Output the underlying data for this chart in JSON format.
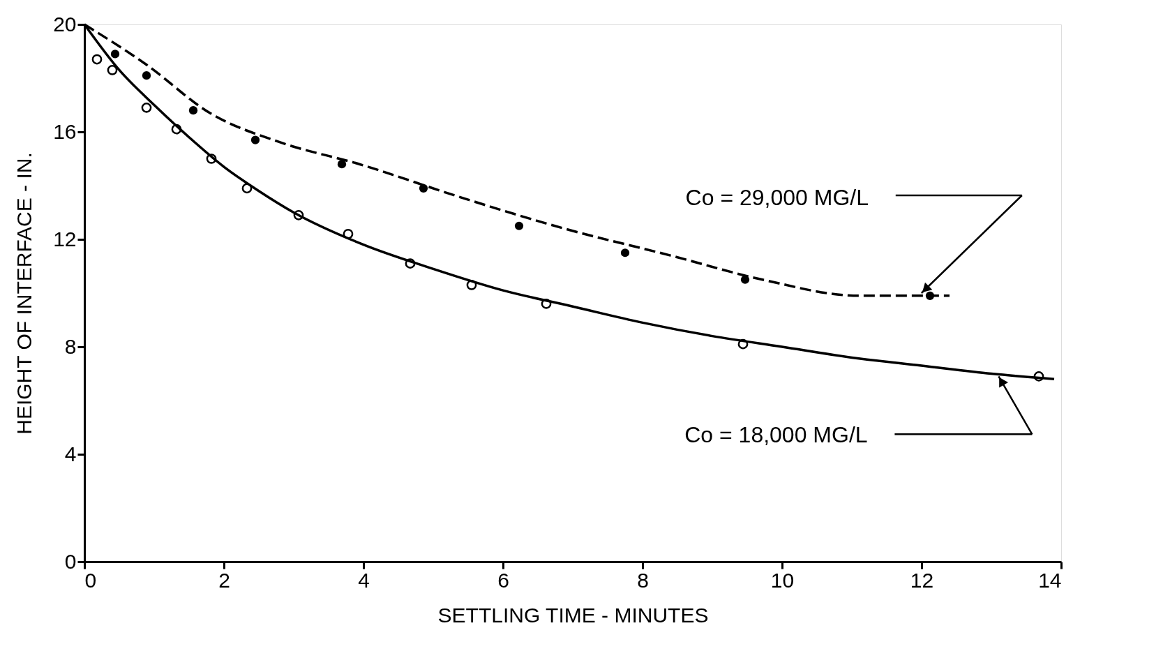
{
  "chart_data": {
    "type": "scatter",
    "xlabel": "SETTLING TIME - MINUTES",
    "ylabel": "HEIGHT OF INTERFACE - IN.",
    "xlim": [
      0,
      14
    ],
    "ylim": [
      0,
      20
    ],
    "xticks": [
      0,
      2,
      4,
      6,
      8,
      10,
      12,
      14
    ],
    "yticks": [
      0,
      4,
      8,
      12,
      16,
      20
    ],
    "grid": false,
    "series": [
      {
        "color": "#000000",
        "marker": "circle",
        "x": [
          0.44,
          0.89,
          1.56,
          2.45,
          3.69,
          4.86,
          6.23,
          7.75,
          9.47,
          12.12
        ],
        "values": [
          18.9,
          18.1,
          16.8,
          15.7,
          14.8,
          13.9,
          12.5,
          11.5,
          10.5,
          9.9
        ]
      },
      {
        "color": "#000000",
        "marker": "circle",
        "x": [
          0.18,
          0.4,
          0.89,
          1.32,
          1.82,
          2.33,
          3.07,
          3.78,
          4.67,
          5.55,
          6.62,
          9.44,
          13.68
        ],
        "values": [
          18.7,
          18.3,
          16.9,
          16.1,
          15.0,
          13.9,
          12.9,
          12.2,
          11.1,
          10.3,
          9.6,
          8.1,
          6.9
        ]
      },
      {
        "type": "line",
        "color": "#000000",
        "line_style": "dashed",
        "x": [
          0,
          0.89,
          1.8,
          2.82,
          3.94,
          5.35,
          6.88,
          8.4,
          9.72,
          11.1,
          12.4
        ],
        "values": [
          20,
          18.5,
          16.7,
          15.6,
          14.8,
          13.6,
          12.4,
          11.4,
          10.5,
          9.9,
          9.9
        ]
      },
      {
        "type": "line",
        "color": "#000000",
        "line_style": "solid",
        "x": [
          0,
          0.5,
          1,
          1.5,
          2,
          2.5,
          3,
          4,
          5,
          6,
          7,
          8,
          9,
          10,
          11,
          12,
          13,
          13.9
        ],
        "values": [
          20,
          18.3,
          17.0,
          15.8,
          14.7,
          13.8,
          13.0,
          11.8,
          10.9,
          10.1,
          9.5,
          8.9,
          8.4,
          8.0,
          7.6,
          7.3,
          7.0,
          6.8
        ]
      }
    ],
    "annotations": [
      "Co = 29,000 MG/L",
      "Co = 18,000 MG/L"
    ]
  }
}
